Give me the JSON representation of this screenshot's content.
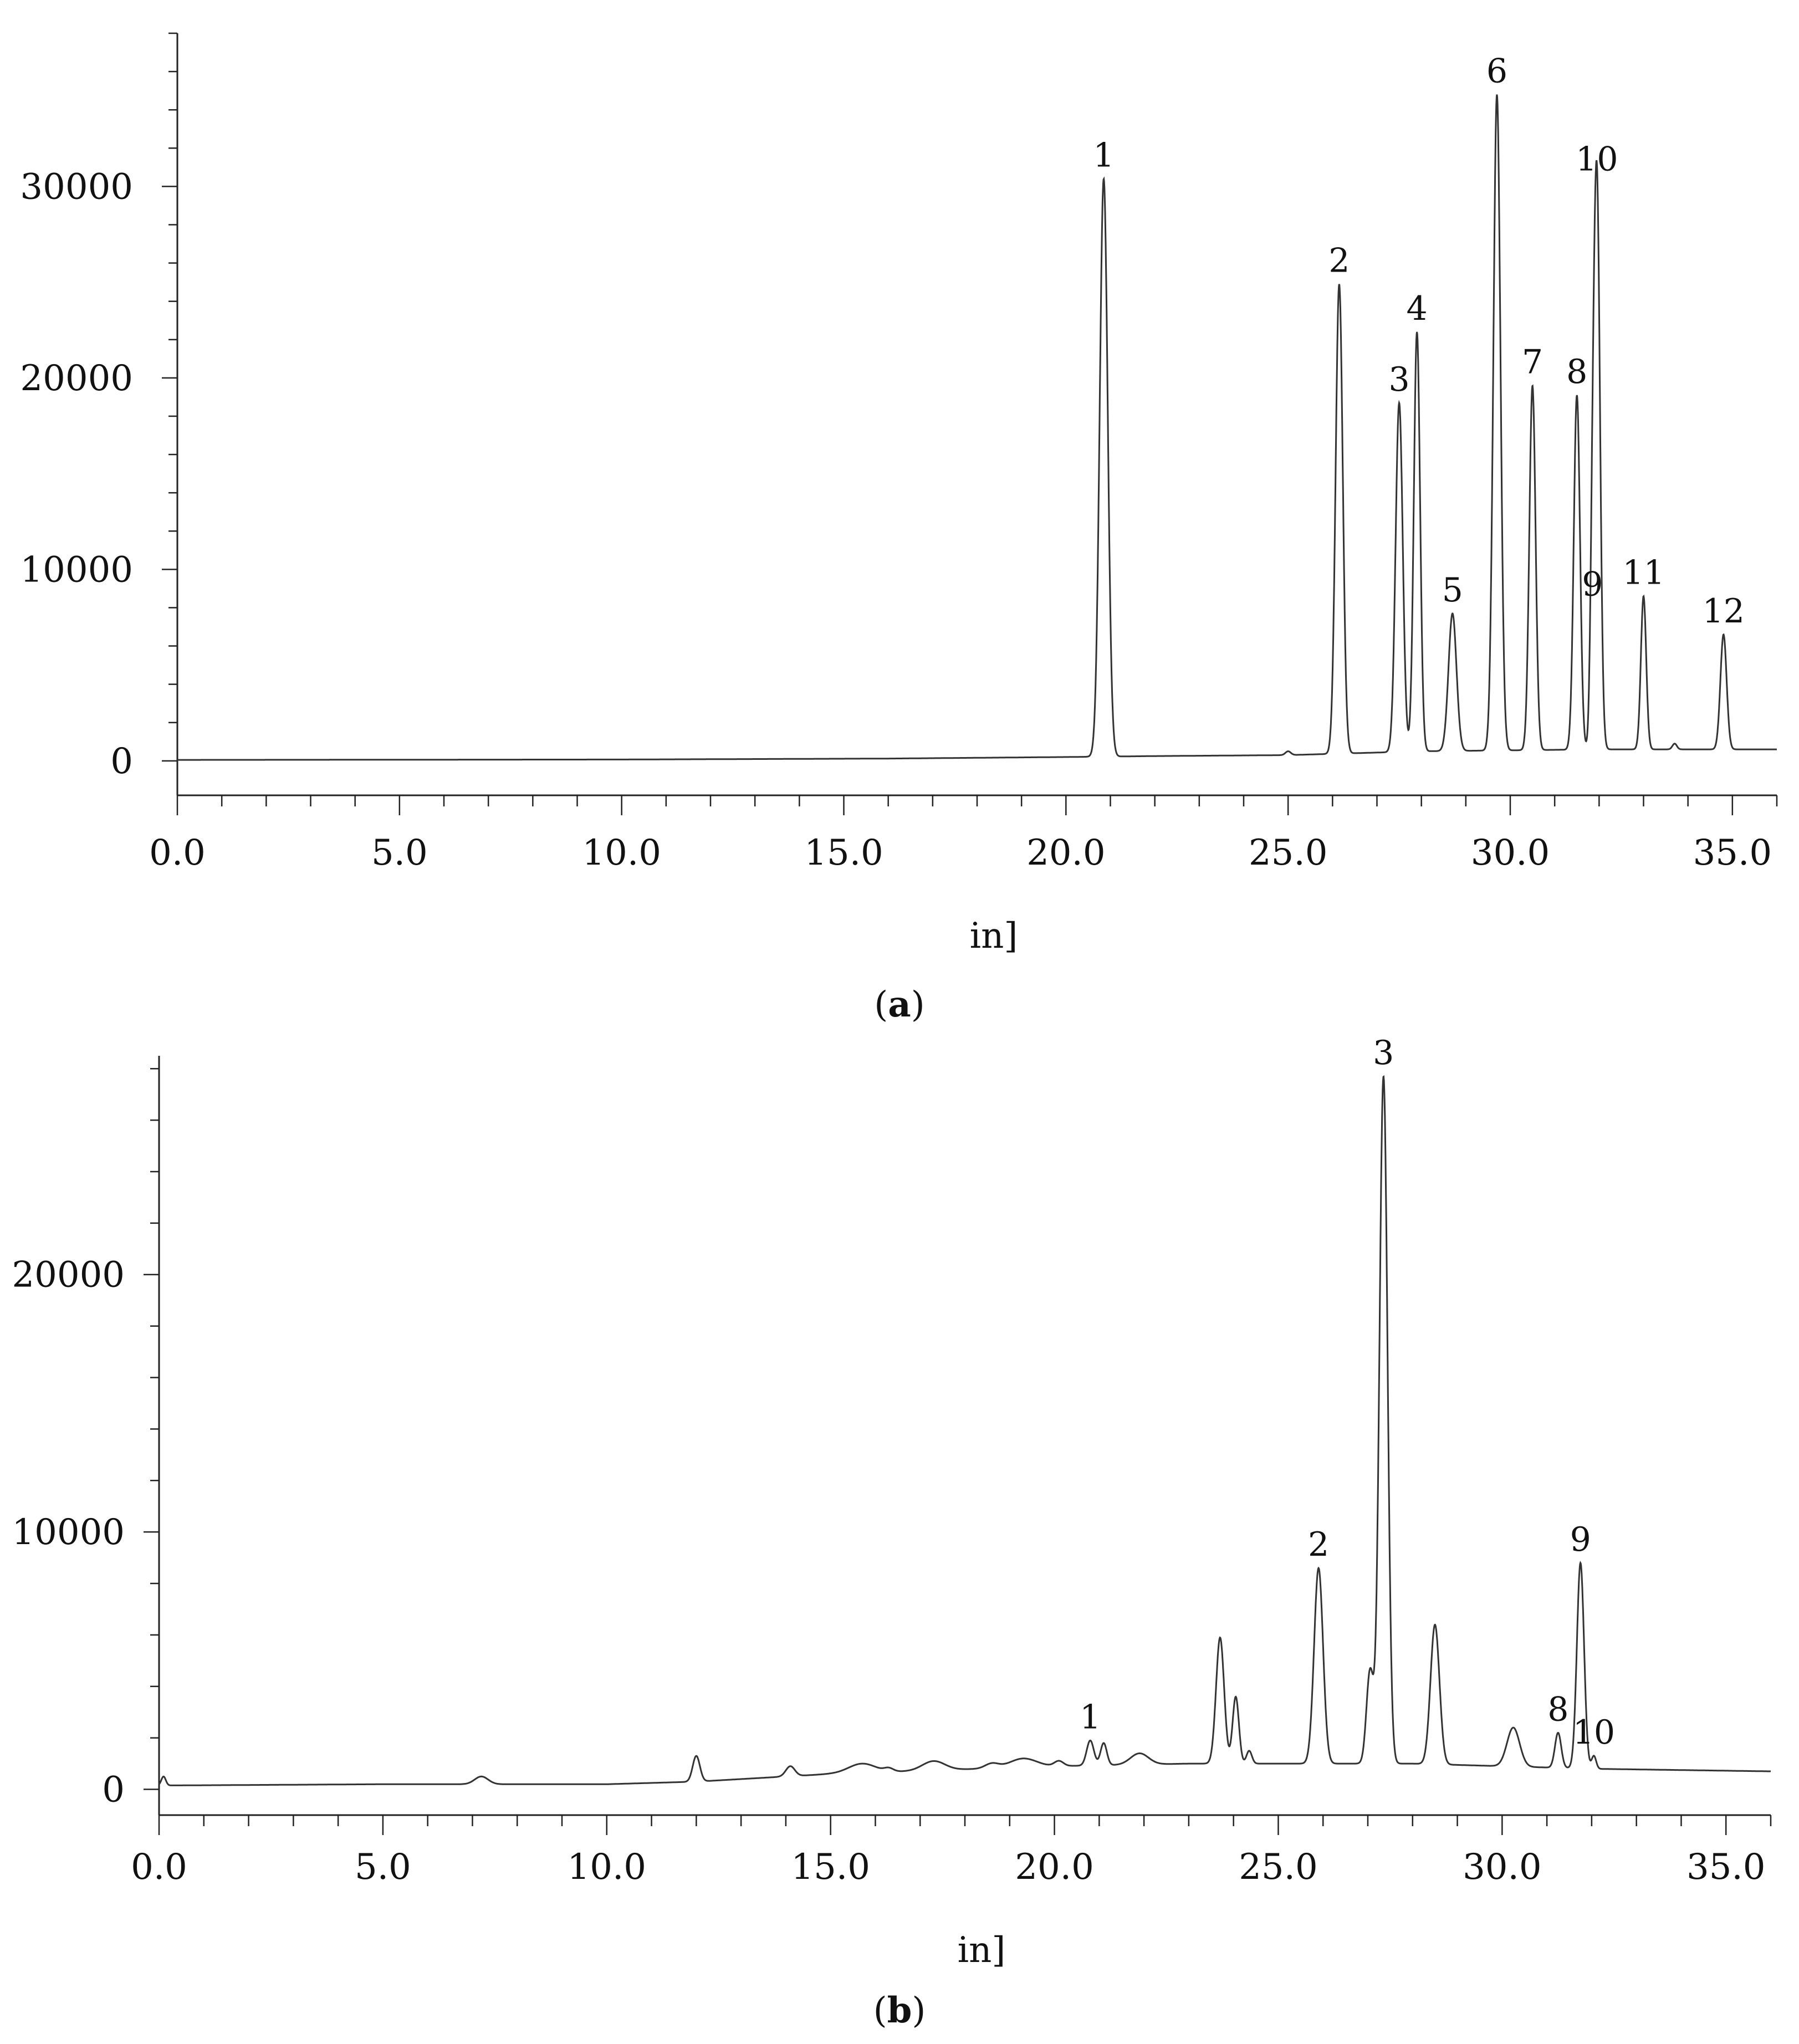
{
  "chart_data": [
    {
      "type": "line",
      "panel_label": "a",
      "xlabel": "in]",
      "ylabel": "",
      "xlim": [
        0,
        36
      ],
      "ylim": [
        -1800,
        38000
      ],
      "x_ticks": [
        0,
        5,
        10,
        15,
        20,
        25,
        30,
        35
      ],
      "x_tick_labels": [
        "0.0",
        "5.0",
        "10.0",
        "15.0",
        "20.0",
        "25.0",
        "30.0",
        "35.0"
      ],
      "y_ticks": [
        0,
        10000,
        20000,
        30000
      ],
      "y_tick_labels": [
        "0",
        "10000",
        "20000",
        "30000"
      ],
      "grid": false,
      "baseline": [
        [
          0,
          50
        ],
        [
          10,
          70
        ],
        [
          16,
          120
        ],
        [
          20,
          200
        ],
        [
          22,
          250
        ],
        [
          25,
          300
        ],
        [
          28,
          500
        ],
        [
          32,
          600
        ],
        [
          36,
          600
        ]
      ],
      "peaks": [
        {
          "label": "1",
          "x": 20.85,
          "y": 30400,
          "w": 0.09
        },
        {
          "label": "2",
          "x": 26.15,
          "y": 24900,
          "w": 0.08
        },
        {
          "label": "3",
          "x": 27.5,
          "y": 18700,
          "w": 0.08
        },
        {
          "label": "4",
          "x": 27.9,
          "y": 22400,
          "w": 0.07
        },
        {
          "label": "5",
          "x": 28.7,
          "y": 7700,
          "w": 0.09
        },
        {
          "label": "6",
          "x": 29.7,
          "y": 34800,
          "w": 0.08
        },
        {
          "label": "7",
          "x": 30.5,
          "y": 19600,
          "w": 0.07
        },
        {
          "label": "8",
          "x": 31.5,
          "y": 19100,
          "w": 0.07
        },
        {
          "label": "9",
          "x": 31.85,
          "y": 8000,
          "w": 0.05
        },
        {
          "label": "10",
          "x": 31.95,
          "y": 30200,
          "w": 0.07
        },
        {
          "label": "11",
          "x": 33.0,
          "y": 8600,
          "w": 0.06
        },
        {
          "label": "12",
          "x": 34.8,
          "y": 6600,
          "w": 0.07
        }
      ],
      "minor_peaks": [
        {
          "x": 25.0,
          "y": 500,
          "w": 0.06
        },
        {
          "x": 33.7,
          "y": 900,
          "w": 0.05
        }
      ]
    },
    {
      "type": "line",
      "panel_label": "b",
      "xlabel": "in]",
      "ylabel": "",
      "xlim": [
        0,
        36
      ],
      "ylim": [
        -1000,
        28500
      ],
      "x_ticks": [
        0,
        5,
        10,
        15,
        20,
        25,
        30,
        35
      ],
      "x_tick_labels": [
        "0.0",
        "5.0",
        "10.0",
        "15.0",
        "20.0",
        "25.0",
        "30.0",
        "35.0"
      ],
      "y_ticks": [
        0,
        10000,
        20000
      ],
      "y_tick_labels": [
        "0",
        "10000",
        "20000"
      ],
      "grid": false,
      "baseline": [
        [
          0,
          150
        ],
        [
          5,
          200
        ],
        [
          10,
          200
        ],
        [
          12,
          300
        ],
        [
          15,
          600
        ],
        [
          20,
          900
        ],
        [
          23,
          1000
        ],
        [
          28,
          1000
        ],
        [
          32,
          800
        ],
        [
          36,
          700
        ]
      ],
      "peaks": [
        {
          "label": "1",
          "x": 20.8,
          "y": 1900,
          "w": 0.08
        },
        {
          "label": "2",
          "x": 25.9,
          "y": 8600,
          "w": 0.1
        },
        {
          "label": "3",
          "x": 27.35,
          "y": 27700,
          "w": 0.09
        },
        {
          "label": "8",
          "x": 31.25,
          "y": 2200,
          "w": 0.07
        },
        {
          "label": "9",
          "x": 31.75,
          "y": 8800,
          "w": 0.08
        },
        {
          "label": "10",
          "x": 32.05,
          "y": 1300,
          "w": 0.05
        }
      ],
      "minor_peaks": [
        {
          "x": 0.1,
          "y": 500,
          "w": 0.05
        },
        {
          "x": 7.2,
          "y": 500,
          "w": 0.15
        },
        {
          "x": 12.0,
          "y": 1300,
          "w": 0.08
        },
        {
          "x": 14.1,
          "y": 900,
          "w": 0.1
        },
        {
          "x": 15.7,
          "y": 1000,
          "w": 0.3
        },
        {
          "x": 16.3,
          "y": 800,
          "w": 0.1
        },
        {
          "x": 17.3,
          "y": 1100,
          "w": 0.25
        },
        {
          "x": 18.6,
          "y": 1000,
          "w": 0.15
        },
        {
          "x": 19.3,
          "y": 1200,
          "w": 0.3
        },
        {
          "x": 20.1,
          "y": 1100,
          "w": 0.1
        },
        {
          "x": 21.1,
          "y": 1800,
          "w": 0.07
        },
        {
          "x": 21.9,
          "y": 1400,
          "w": 0.2
        },
        {
          "x": 23.7,
          "y": 5900,
          "w": 0.09
        },
        {
          "x": 24.05,
          "y": 3600,
          "w": 0.07
        },
        {
          "x": 24.35,
          "y": 1500,
          "w": 0.06
        },
        {
          "x": 27.05,
          "y": 4600,
          "w": 0.08
        },
        {
          "x": 28.5,
          "y": 6400,
          "w": 0.1
        },
        {
          "x": 30.25,
          "y": 2400,
          "w": 0.14
        }
      ]
    }
  ]
}
